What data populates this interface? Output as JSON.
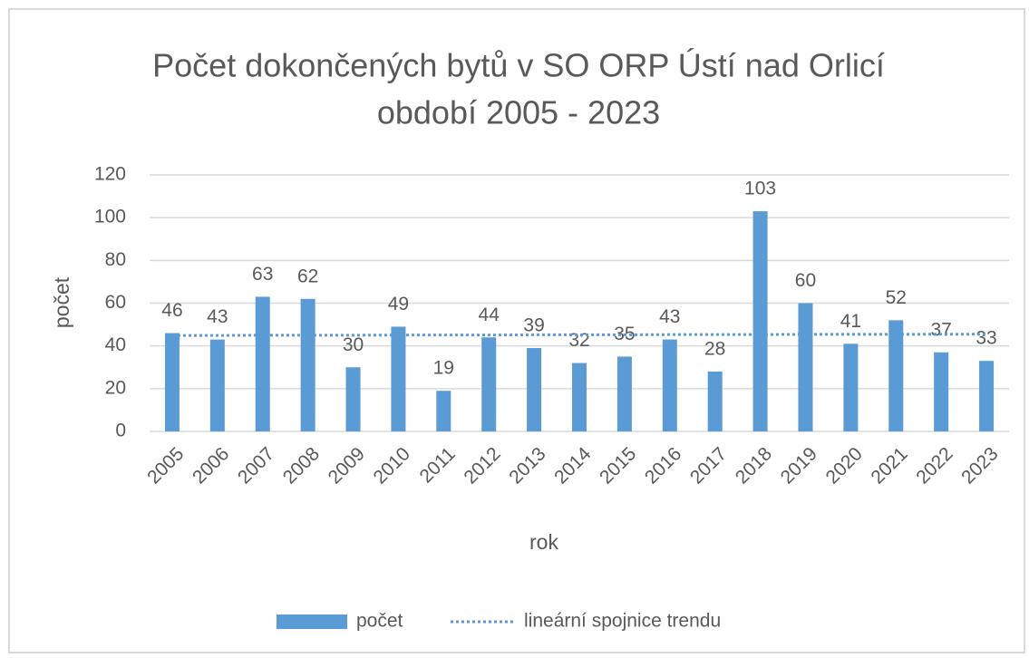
{
  "chart_data": {
    "type": "bar",
    "title": [
      "Počet dokončených bytů v SO ORP Ústí nad Orlicí",
      "období 2005 - 2023"
    ],
    "x_label": "rok",
    "y_label": "počet",
    "categories": [
      "2005",
      "2006",
      "2007",
      "2008",
      "2009",
      "2010",
      "2011",
      "2012",
      "2013",
      "2014",
      "2015",
      "2016",
      "2017",
      "2018",
      "2019",
      "2020",
      "2021",
      "2022",
      "2023"
    ],
    "series": [
      {
        "name": "počet",
        "type": "bar",
        "color": "#5b9bd5",
        "values": [
          46,
          43,
          63,
          62,
          30,
          49,
          19,
          44,
          39,
          32,
          35,
          43,
          28,
          103,
          60,
          41,
          52,
          37,
          33
        ]
      },
      {
        "name": "lineární spojnice trendu",
        "type": "line",
        "dashed": true,
        "color": "#5b9bd5",
        "values": [
          44.9,
          44.9,
          45.0,
          45.0,
          45.0,
          45.1,
          45.1,
          45.1,
          45.2,
          45.2,
          45.2,
          45.3,
          45.3,
          45.3,
          45.4,
          45.4,
          45.4,
          45.5,
          45.5
        ]
      }
    ],
    "ylim": [
      0,
      120
    ],
    "yticks": [
      0,
      20,
      40,
      60,
      80,
      100,
      120
    ],
    "grid": true,
    "legend": "bottom"
  }
}
